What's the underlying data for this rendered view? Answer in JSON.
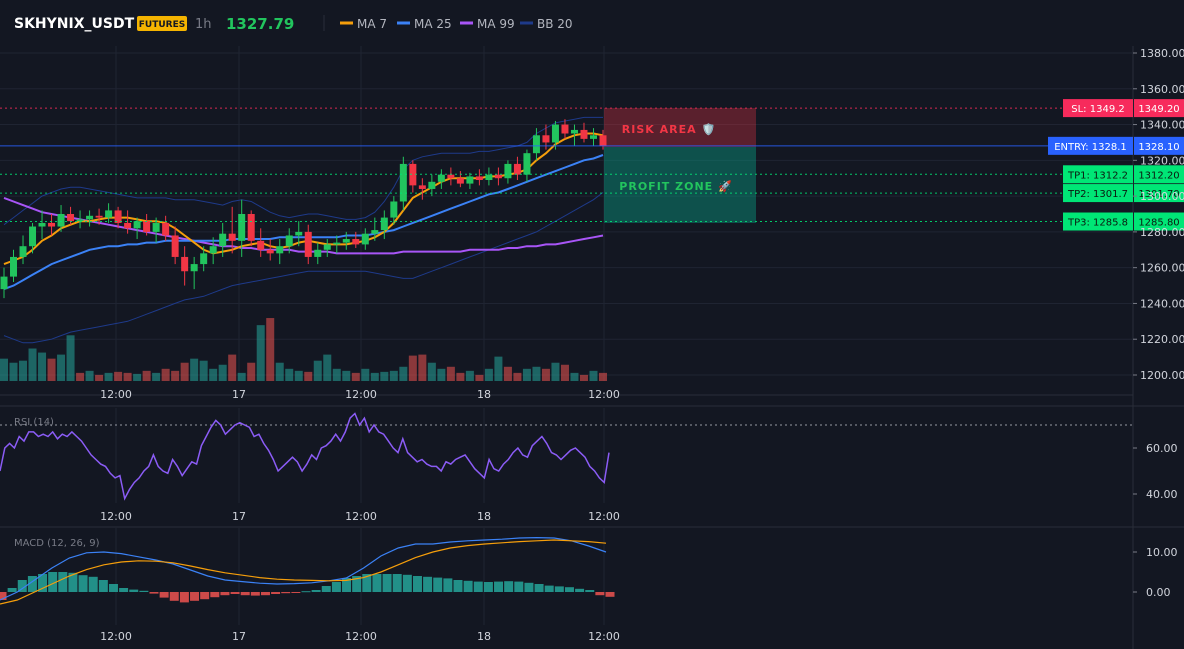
{
  "header": {
    "symbol": "SKHYNIX_USDT",
    "market_badge": "FUTURES",
    "interval": "1h",
    "last_price": "1327.79",
    "legend": [
      {
        "name": "MA 7",
        "color": "#f59e0b"
      },
      {
        "name": "MA 25",
        "color": "#3b82f6"
      },
      {
        "name": "MA 99",
        "color": "#a855f7"
      },
      {
        "name": "BB 20",
        "color": "#1e3a8a"
      }
    ]
  },
  "colors": {
    "background": "#131722",
    "up": "#22c55e",
    "down": "#f23645",
    "grid": "#1f2432",
    "accent_price": "#22c55e"
  },
  "chart_data": [
    {
      "type": "candlestick",
      "title": "",
      "x_tick_labels": [
        "12:00",
        "17",
        "12:00",
        "18",
        "12:00"
      ],
      "y_tick_labels": [
        "1380.00",
        "1360.00",
        "1340.00",
        "1320.00",
        "1300.00",
        "1280.00",
        "1260.00",
        "1240.00",
        "1220.00",
        "1200.00"
      ],
      "ylim": [
        1196,
        1386
      ],
      "ohlc": [
        [
          1248,
          1260,
          1243,
          1255
        ],
        [
          1255,
          1270,
          1252,
          1266
        ],
        [
          1266,
          1278,
          1262,
          1272
        ],
        [
          1272,
          1285,
          1268,
          1283
        ],
        [
          1283,
          1292,
          1276,
          1285
        ],
        [
          1285,
          1290,
          1278,
          1283
        ],
        [
          1283,
          1295,
          1280,
          1290
        ],
        [
          1290,
          1294,
          1284,
          1286
        ],
        [
          1286,
          1292,
          1282,
          1287
        ],
        [
          1287,
          1292,
          1283,
          1289
        ],
        [
          1289,
          1293,
          1284,
          1288
        ],
        [
          1288,
          1296,
          1285,
          1292
        ],
        [
          1292,
          1294,
          1282,
          1285
        ],
        [
          1285,
          1292,
          1279,
          1282
        ],
        [
          1282,
          1288,
          1276,
          1286
        ],
        [
          1286,
          1290,
          1278,
          1280
        ],
        [
          1280,
          1288,
          1274,
          1285
        ],
        [
          1285,
          1289,
          1275,
          1278
        ],
        [
          1278,
          1283,
          1262,
          1266
        ],
        [
          1266,
          1272,
          1250,
          1258
        ],
        [
          1258,
          1266,
          1248,
          1262
        ],
        [
          1262,
          1272,
          1258,
          1268
        ],
        [
          1268,
          1277,
          1262,
          1272
        ],
        [
          1272,
          1285,
          1266,
          1279
        ],
        [
          1279,
          1294,
          1268,
          1275
        ],
        [
          1275,
          1298,
          1266,
          1290
        ],
        [
          1290,
          1292,
          1272,
          1275
        ],
        [
          1275,
          1282,
          1266,
          1270
        ],
        [
          1270,
          1276,
          1264,
          1268
        ],
        [
          1268,
          1276,
          1262,
          1272
        ],
        [
          1272,
          1282,
          1268,
          1278
        ],
        [
          1278,
          1286,
          1272,
          1280
        ],
        [
          1280,
          1284,
          1262,
          1266
        ],
        [
          1266,
          1274,
          1262,
          1270
        ],
        [
          1270,
          1276,
          1266,
          1273
        ],
        [
          1273,
          1278,
          1268,
          1274
        ],
        [
          1274,
          1280,
          1270,
          1276
        ],
        [
          1276,
          1280,
          1271,
          1273
        ],
        [
          1273,
          1282,
          1270,
          1279
        ],
        [
          1279,
          1288,
          1275,
          1281
        ],
        [
          1281,
          1292,
          1276,
          1288
        ],
        [
          1288,
          1300,
          1284,
          1297
        ],
        [
          1297,
          1322,
          1292,
          1318
        ],
        [
          1318,
          1320,
          1302,
          1306
        ],
        [
          1306,
          1310,
          1298,
          1304
        ],
        [
          1304,
          1312,
          1300,
          1308
        ],
        [
          1308,
          1315,
          1304,
          1312
        ],
        [
          1312,
          1316,
          1306,
          1310
        ],
        [
          1310,
          1314,
          1305,
          1307
        ],
        [
          1307,
          1313,
          1304,
          1311
        ],
        [
          1311,
          1315,
          1306,
          1309
        ],
        [
          1309,
          1316,
          1306,
          1312
        ],
        [
          1312,
          1316,
          1306,
          1310
        ],
        [
          1310,
          1320,
          1307,
          1318
        ],
        [
          1318,
          1322,
          1309,
          1312
        ],
        [
          1312,
          1326,
          1308,
          1324
        ],
        [
          1324,
          1338,
          1320,
          1334
        ],
        [
          1334,
          1340,
          1326,
          1330
        ],
        [
          1330,
          1342,
          1326,
          1340
        ],
        [
          1340,
          1343,
          1332,
          1335
        ],
        [
          1335,
          1340,
          1328,
          1337
        ],
        [
          1337,
          1341,
          1330,
          1332
        ],
        [
          1332,
          1338,
          1328,
          1334
        ],
        [
          1334,
          1337,
          1326,
          1328
        ]
      ],
      "volume": [
        22,
        18,
        20,
        32,
        28,
        22,
        26,
        45,
        8,
        10,
        6,
        8,
        9,
        8,
        7,
        10,
        8,
        12,
        10,
        18,
        22,
        20,
        12,
        16,
        26,
        8,
        18,
        55,
        62,
        18,
        12,
        10,
        9,
        20,
        26,
        12,
        10,
        8,
        12,
        8,
        9,
        10,
        14,
        25,
        26,
        18,
        12,
        14,
        8,
        10,
        6,
        12,
        24,
        14,
        8,
        12,
        14,
        12,
        18,
        16,
        8,
        6,
        10,
        8
      ],
      "volume_up": [
        true,
        true,
        true,
        true,
        true,
        false,
        true,
        true,
        false,
        true,
        false,
        true,
        false,
        false,
        true,
        false,
        true,
        false,
        false,
        false,
        true,
        true,
        true,
        true,
        false,
        true,
        false,
        true,
        false,
        true,
        true,
        true,
        false,
        true,
        true,
        true,
        true,
        false,
        true,
        true,
        true,
        true,
        true,
        false,
        false,
        true,
        true,
        false,
        false,
        true,
        false,
        true,
        true,
        false,
        false,
        true,
        true,
        false,
        true,
        false,
        true,
        false,
        true,
        false
      ],
      "ma7": [
        1262,
        1264,
        1266,
        1270,
        1275,
        1278,
        1282,
        1284,
        1286,
        1286,
        1287,
        1288,
        1288,
        1288,
        1287,
        1286,
        1286,
        1285,
        1282,
        1278,
        1274,
        1270,
        1268,
        1269,
        1270,
        1272,
        1273,
        1274,
        1272,
        1271,
        1272,
        1274,
        1275,
        1274,
        1273,
        1273,
        1273,
        1274,
        1275,
        1277,
        1280,
        1285,
        1292,
        1299,
        1302,
        1305,
        1308,
        1310,
        1310,
        1310,
        1310,
        1311,
        1311,
        1312,
        1313,
        1315,
        1320,
        1324,
        1329,
        1332,
        1334,
        1335,
        1335,
        1334
      ],
      "ma25": [
        1248,
        1250,
        1253,
        1256,
        1259,
        1262,
        1264,
        1266,
        1268,
        1270,
        1271,
        1272,
        1272,
        1273,
        1273,
        1274,
        1274,
        1275,
        1275,
        1275,
        1275,
        1275,
        1275,
        1275,
        1276,
        1276,
        1276,
        1276,
        1276,
        1277,
        1277,
        1277,
        1277,
        1277,
        1277,
        1277,
        1278,
        1278,
        1278,
        1279,
        1280,
        1281,
        1283,
        1285,
        1287,
        1289,
        1291,
        1293,
        1295,
        1297,
        1299,
        1301,
        1302,
        1304,
        1306,
        1308,
        1310,
        1312,
        1314,
        1316,
        1318,
        1320,
        1321,
        1323
      ],
      "ma99": [
        1299,
        1297,
        1295,
        1293,
        1291,
        1290,
        1289,
        1288,
        1287,
        1286,
        1285,
        1284,
        1283,
        1282,
        1281,
        1280,
        1279,
        1278,
        1277,
        1276,
        1275,
        1274,
        1273,
        1272,
        1272,
        1271,
        1271,
        1270,
        1270,
        1270,
        1270,
        1269,
        1269,
        1269,
        1269,
        1268,
        1268,
        1268,
        1268,
        1268,
        1268,
        1268,
        1269,
        1269,
        1269,
        1269,
        1269,
        1269,
        1269,
        1270,
        1270,
        1270,
        1270,
        1271,
        1271,
        1272,
        1272,
        1273,
        1273,
        1274,
        1275,
        1276,
        1277,
        1278
      ],
      "bb_upper": [
        1284,
        1288,
        1292,
        1296,
        1300,
        1302,
        1304,
        1305,
        1305,
        1304,
        1303,
        1302,
        1301,
        1300,
        1299,
        1299,
        1299,
        1299,
        1298,
        1298,
        1298,
        1297,
        1296,
        1295,
        1297,
        1298,
        1297,
        1294,
        1291,
        1289,
        1288,
        1289,
        1290,
        1290,
        1289,
        1288,
        1287,
        1287,
        1288,
        1291,
        1297,
        1305,
        1315,
        1320,
        1322,
        1323,
        1324,
        1324,
        1324,
        1324,
        1325,
        1325,
        1326,
        1327,
        1328,
        1330,
        1335,
        1338,
        1341,
        1342,
        1343,
        1344,
        1344,
        1344
      ],
      "bb_lower": [
        1222,
        1220,
        1218,
        1218,
        1219,
        1220,
        1222,
        1224,
        1225,
        1226,
        1227,
        1228,
        1229,
        1230,
        1232,
        1234,
        1236,
        1238,
        1240,
        1242,
        1243,
        1244,
        1246,
        1248,
        1250,
        1251,
        1252,
        1253,
        1254,
        1255,
        1256,
        1257,
        1258,
        1258,
        1258,
        1258,
        1258,
        1258,
        1258,
        1257,
        1256,
        1255,
        1254,
        1254,
        1256,
        1258,
        1260,
        1262,
        1264,
        1266,
        1268,
        1270,
        1272,
        1274,
        1276,
        1278,
        1280,
        1283,
        1286,
        1289,
        1292,
        1295,
        1298,
        1302
      ]
    },
    {
      "type": "line",
      "title": "RSI (14)",
      "x_tick_labels": [
        "12:00",
        "17",
        "12:00",
        "18",
        "12:00"
      ],
      "y_tick_labels": [
        "60.00",
        "40.00"
      ],
      "ylim": [
        37,
        80
      ],
      "overbought": 70,
      "values": [
        50,
        60,
        62,
        60,
        65,
        63,
        67,
        67,
        65,
        66,
        65,
        67,
        64,
        66,
        65,
        67,
        65,
        63,
        60,
        57,
        55,
        53,
        52,
        49,
        47,
        48,
        38,
        42,
        45,
        47,
        50,
        52,
        57,
        52,
        50,
        49,
        55,
        52,
        48,
        51,
        54,
        53,
        61,
        65,
        69,
        72,
        70,
        66,
        68,
        70,
        71,
        70,
        69,
        65,
        66,
        62,
        59,
        55,
        50,
        52,
        54,
        56,
        54,
        50,
        53,
        57,
        55,
        60,
        61,
        63,
        66,
        63,
        67,
        73,
        75,
        70,
        73,
        67,
        70,
        67,
        66,
        63,
        60,
        58,
        64,
        58,
        56,
        54,
        55,
        53,
        52,
        52,
        50,
        54,
        53,
        55,
        56,
        57,
        54,
        51,
        49,
        47,
        55,
        51,
        50,
        53,
        55,
        58,
        60,
        57,
        56,
        61,
        63,
        65,
        62,
        58,
        57,
        55,
        57,
        59,
        60,
        58,
        56,
        52,
        50,
        47,
        45,
        58
      ],
      "series_name": "",
      "line_color": "#8b5cf6"
    },
    {
      "type": "bar",
      "title": "MACD (12, 26, 9)",
      "x_tick_labels": [
        "12:00",
        "17",
        "12:00",
        "18",
        "12:00"
      ],
      "y_tick_labels": [
        "10.00",
        "0.00"
      ],
      "ylim": [
        -8,
        16
      ],
      "histogram": [
        -2,
        1,
        3,
        4,
        4.5,
        5,
        5,
        4.8,
        4.2,
        3.8,
        3,
        2,
        1,
        0.6,
        0.3,
        -0.4,
        -1.4,
        -2.2,
        -2.6,
        -2.2,
        -1.8,
        -1.3,
        -0.8,
        -0.5,
        -0.8,
        -0.9,
        -0.8,
        -0.5,
        -0.3,
        -0.2,
        0.2,
        0.5,
        1.5,
        2.5,
        3.5,
        4,
        4.5,
        4.5,
        4.5,
        4.5,
        4.3,
        4,
        3.8,
        3.6,
        3.4,
        3,
        2.8,
        2.6,
        2.5,
        2.6,
        2.7,
        2.6,
        2.3,
        2,
        1.6,
        1.4,
        1.2,
        0.8,
        0.5,
        -0.8,
        -1.2
      ],
      "macd_line": [
        -2,
        0,
        3,
        6,
        8.5,
        9.8,
        10,
        9.6,
        8.8,
        8,
        7,
        5.5,
        4,
        3,
        2.6,
        2.2,
        2.0,
        2.1,
        2.3,
        2.8,
        3.5,
        6,
        9,
        11,
        12,
        12,
        12.5,
        12.8,
        13,
        13.2,
        13.5,
        13.6,
        13.5,
        12.8,
        11.5,
        10
      ],
      "signal_line": [
        -3,
        -2,
        0,
        2,
        4,
        5.6,
        6.8,
        7.5,
        7.8,
        7.7,
        7.3,
        6.5,
        5.6,
        4.8,
        4.2,
        3.6,
        3.2,
        3,
        2.9,
        2.8,
        2.9,
        3.6,
        5,
        6.8,
        8.6,
        10,
        11,
        11.6,
        12,
        12.3,
        12.6,
        12.8,
        13,
        12.8,
        12.6,
        12.2
      ],
      "macd_color": "#3b82f6",
      "signal_color": "#f59e0b"
    }
  ],
  "overlays": {
    "risk_label": "RISK AREA 🛡️",
    "profit_label": "PROFIT ZONE 🚀",
    "price_levels": [
      {
        "left_text": "SL: 1349.2",
        "right_text": "1349.20",
        "value": 1349.2,
        "color": "#f72b5c"
      },
      {
        "left_text": "ENTRY: 1328.1",
        "right_text": "1328.10",
        "value": 1328.1,
        "color": "#2962ff"
      },
      {
        "left_text": "TP1: 1312.2",
        "right_text": "1312.20",
        "value": 1312.2,
        "color": "#00e676"
      },
      {
        "left_text": "TP2: 1301.7",
        "right_text": "1301.70",
        "value": 1301.7,
        "color": "#00e676"
      },
      {
        "left_text": "TP3: 1285.8",
        "right_text": "1285.80",
        "value": 1285.8,
        "color": "#00e676"
      }
    ]
  }
}
